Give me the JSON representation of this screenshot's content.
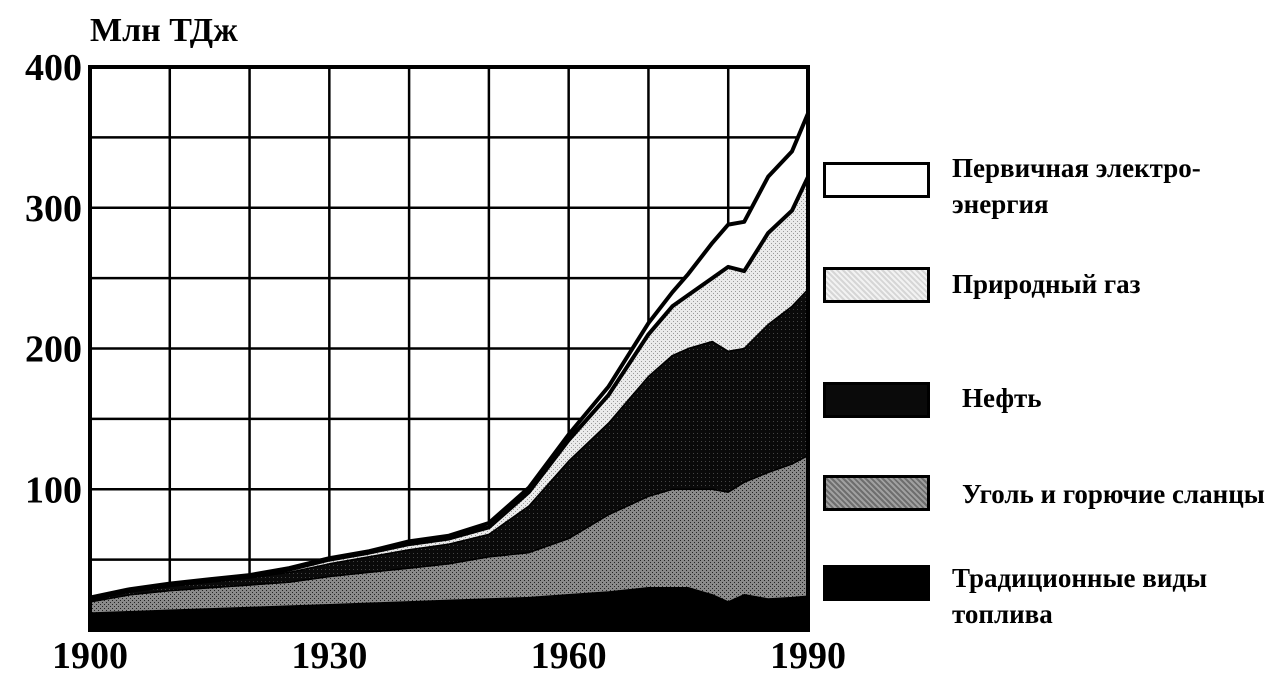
{
  "chart_data": {
    "type": "area",
    "stacked": true,
    "unit_label": "Млн ТДж",
    "xlim": [
      1900,
      1990
    ],
    "ylim": [
      0,
      400
    ],
    "xticks": [
      1900,
      1930,
      1960,
      1990
    ],
    "yticks": [
      100,
      200,
      300,
      400
    ],
    "grid": true,
    "legend_position": "right",
    "x": [
      1900,
      1905,
      1910,
      1915,
      1920,
      1925,
      1930,
      1935,
      1940,
      1945,
      1950,
      1955,
      1960,
      1965,
      1970,
      1973,
      1975,
      1978,
      1980,
      1982,
      1985,
      1988,
      1990
    ],
    "series": [
      {
        "name": "Традиционные виды топлива",
        "color": "#000000",
        "values": [
          12,
          13,
          14,
          15,
          16,
          17,
          18,
          19,
          20,
          21,
          22,
          23,
          25,
          27,
          30,
          30,
          30,
          25,
          20,
          25,
          22,
          23,
          24
        ]
      },
      {
        "name": "Уголь и горючие сланцы",
        "color": "#7a7a7a",
        "values": [
          8,
          12,
          14,
          15,
          16,
          17,
          20,
          22,
          24,
          26,
          30,
          32,
          40,
          55,
          65,
          70,
          70,
          75,
          78,
          80,
          90,
          95,
          100
        ]
      },
      {
        "name": "Нефть",
        "color": "#111111",
        "values": [
          1,
          2,
          3,
          4,
          5,
          7,
          9,
          11,
          13,
          14,
          16,
          33,
          55,
          65,
          85,
          95,
          100,
          105,
          100,
          95,
          105,
          112,
          118
        ]
      },
      {
        "name": "Природный газ",
        "color": "#d9d9d9",
        "values": [
          1,
          1,
          1,
          1,
          1,
          2,
          3,
          3,
          4,
          4,
          5,
          10,
          15,
          20,
          30,
          35,
          38,
          45,
          60,
          55,
          65,
          68,
          80
        ]
      },
      {
        "name": "Первичная электро-\nэнергия",
        "color": "#ffffff",
        "values": [
          1,
          1,
          1,
          1,
          1,
          1,
          1,
          1,
          2,
          2,
          3,
          3,
          4,
          6,
          8,
          10,
          15,
          25,
          30,
          35,
          40,
          42,
          45
        ]
      }
    ],
    "legend_order": [
      4,
      3,
      2,
      1,
      0
    ]
  }
}
